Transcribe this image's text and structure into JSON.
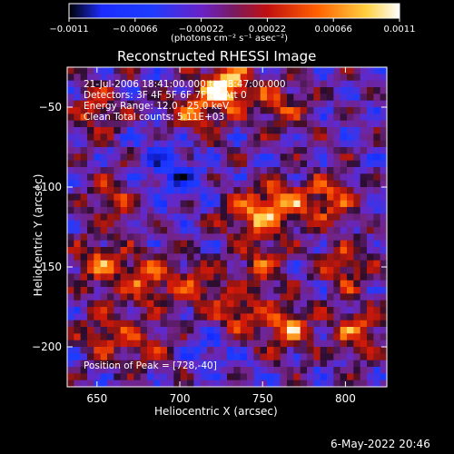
{
  "chart_data": {
    "type": "heatmap",
    "title": "Reconstructed RHESSI Image",
    "xlabel": "Heliocentric X (arcsec)",
    "ylabel": "Heliocentric Y (arcsec)",
    "xlim": [
      632,
      825
    ],
    "ylim": [
      -225,
      -25
    ],
    "xticks": [
      650,
      700,
      750,
      800
    ],
    "yticks": [
      -50,
      -100,
      -150,
      -200
    ],
    "colorbar": {
      "label": "(photons cm⁻² s⁻¹ asec⁻²)",
      "range": [
        -0.0011,
        0.0011
      ],
      "tick_labels": [
        "−0.0011",
        "−0.00066",
        "−0.00022",
        "0.00022",
        "0.00066",
        "0.0011"
      ],
      "ticks": [
        -0.0011,
        -0.00066,
        -0.00022,
        0.00022,
        0.00066,
        0.0011
      ]
    },
    "annotations": [
      "21-Jul-2006 18:41:00.000 to 18:47:00.000",
      "Detectors: 3F 4F 5F 6F 7F 8F  Att 0",
      "Energy Range: 12.0 - 25.0 keV",
      "Clean    Total counts: 5.11E+03",
      "Position of Peak = [728,-40]"
    ],
    "peak_position": [
      728,
      -40
    ],
    "grid_size": [
      48,
      48
    ],
    "features": [
      {
        "x": 728,
        "y": -38,
        "amplitude": 1.05
      },
      {
        "x": 708,
        "y": -55,
        "amplitude": 0.55
      },
      {
        "x": 760,
        "y": -50,
        "amplitude": 0.5
      },
      {
        "x": 650,
        "y": -52,
        "amplitude": 0.5
      },
      {
        "x": 760,
        "y": -112,
        "amplitude": 0.75
      },
      {
        "x": 790,
        "y": -108,
        "amplitude": 0.65
      },
      {
        "x": 740,
        "y": -118,
        "amplitude": 0.55
      },
      {
        "x": 660,
        "y": -108,
        "amplitude": 0.45
      },
      {
        "x": 650,
        "y": -148,
        "amplitude": 0.6
      },
      {
        "x": 680,
        "y": -158,
        "amplitude": 0.65
      },
      {
        "x": 710,
        "y": -162,
        "amplitude": 0.5
      },
      {
        "x": 750,
        "y": -148,
        "amplitude": 0.5
      },
      {
        "x": 800,
        "y": -150,
        "amplitude": 0.55
      },
      {
        "x": 735,
        "y": -180,
        "amplitude": 0.6
      },
      {
        "x": 765,
        "y": -188,
        "amplitude": 0.7
      },
      {
        "x": 808,
        "y": -190,
        "amplitude": 0.6
      },
      {
        "x": 655,
        "y": -192,
        "amplitude": 0.55
      },
      {
        "x": 680,
        "y": -200,
        "amplitude": 0.4
      },
      {
        "x": 700,
        "y": -95,
        "amplitude": -0.35
      },
      {
        "x": 720,
        "y": -200,
        "amplitude": -0.3
      },
      {
        "x": 690,
        "y": -80,
        "amplitude": -0.3
      }
    ]
  },
  "footer": {
    "date": "6-May-2022 20:46"
  }
}
